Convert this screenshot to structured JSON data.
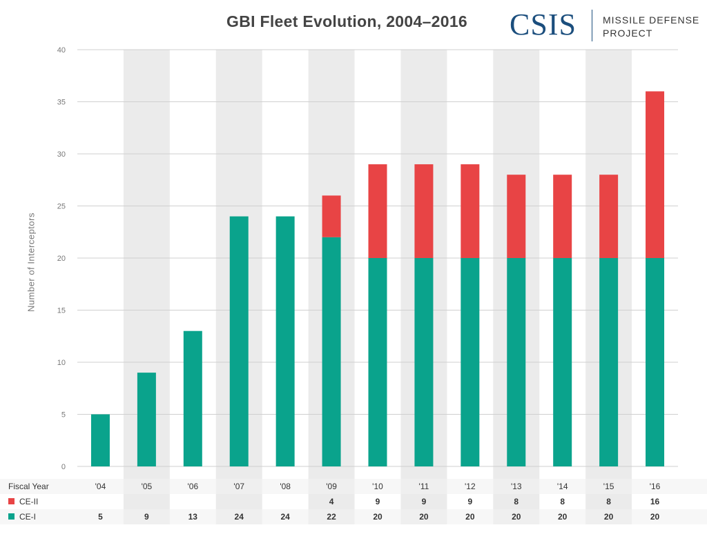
{
  "chart_data": {
    "type": "bar",
    "stacked": true,
    "title": "GBI Fleet Evolution, 2004–2016",
    "xlabel": "Fiscal Year",
    "ylabel": "Number of Interceptors",
    "ylim": [
      0,
      40
    ],
    "yticks": [
      0,
      5,
      10,
      15,
      20,
      25,
      30,
      35,
      40
    ],
    "grid": true,
    "categories": [
      "'04",
      "'05",
      "'06",
      "'07",
      "'08",
      "'09",
      "'10",
      "'11",
      "'12",
      "'13",
      "'14",
      "'15",
      "'16"
    ],
    "series": [
      {
        "name": "CE-I",
        "color": "#0aa38c",
        "values": [
          5,
          9,
          13,
          24,
          24,
          22,
          20,
          20,
          20,
          20,
          20,
          20,
          20
        ]
      },
      {
        "name": "CE-II",
        "color": "#e84445",
        "values": [
          0,
          0,
          0,
          0,
          0,
          4,
          9,
          9,
          9,
          8,
          8,
          8,
          16
        ]
      }
    ],
    "table": {
      "header_label": "Fiscal Year",
      "rows": [
        {
          "label": "CE-II",
          "color": "#e84445",
          "cells": [
            "",
            "",
            "",
            "",
            "",
            "4",
            "9",
            "9",
            "9",
            "8",
            "8",
            "8",
            "16"
          ]
        },
        {
          "label": "CE-I",
          "color": "#0aa38c",
          "cells": [
            "5",
            "9",
            "13",
            "24",
            "24",
            "22",
            "20",
            "20",
            "20",
            "20",
            "20",
            "20",
            "20"
          ]
        }
      ]
    }
  },
  "logo": {
    "mark": "CSIS",
    "line1": "MISSILE DEFENSE",
    "line2": "PROJECT",
    "color": "#1b4e7d"
  }
}
